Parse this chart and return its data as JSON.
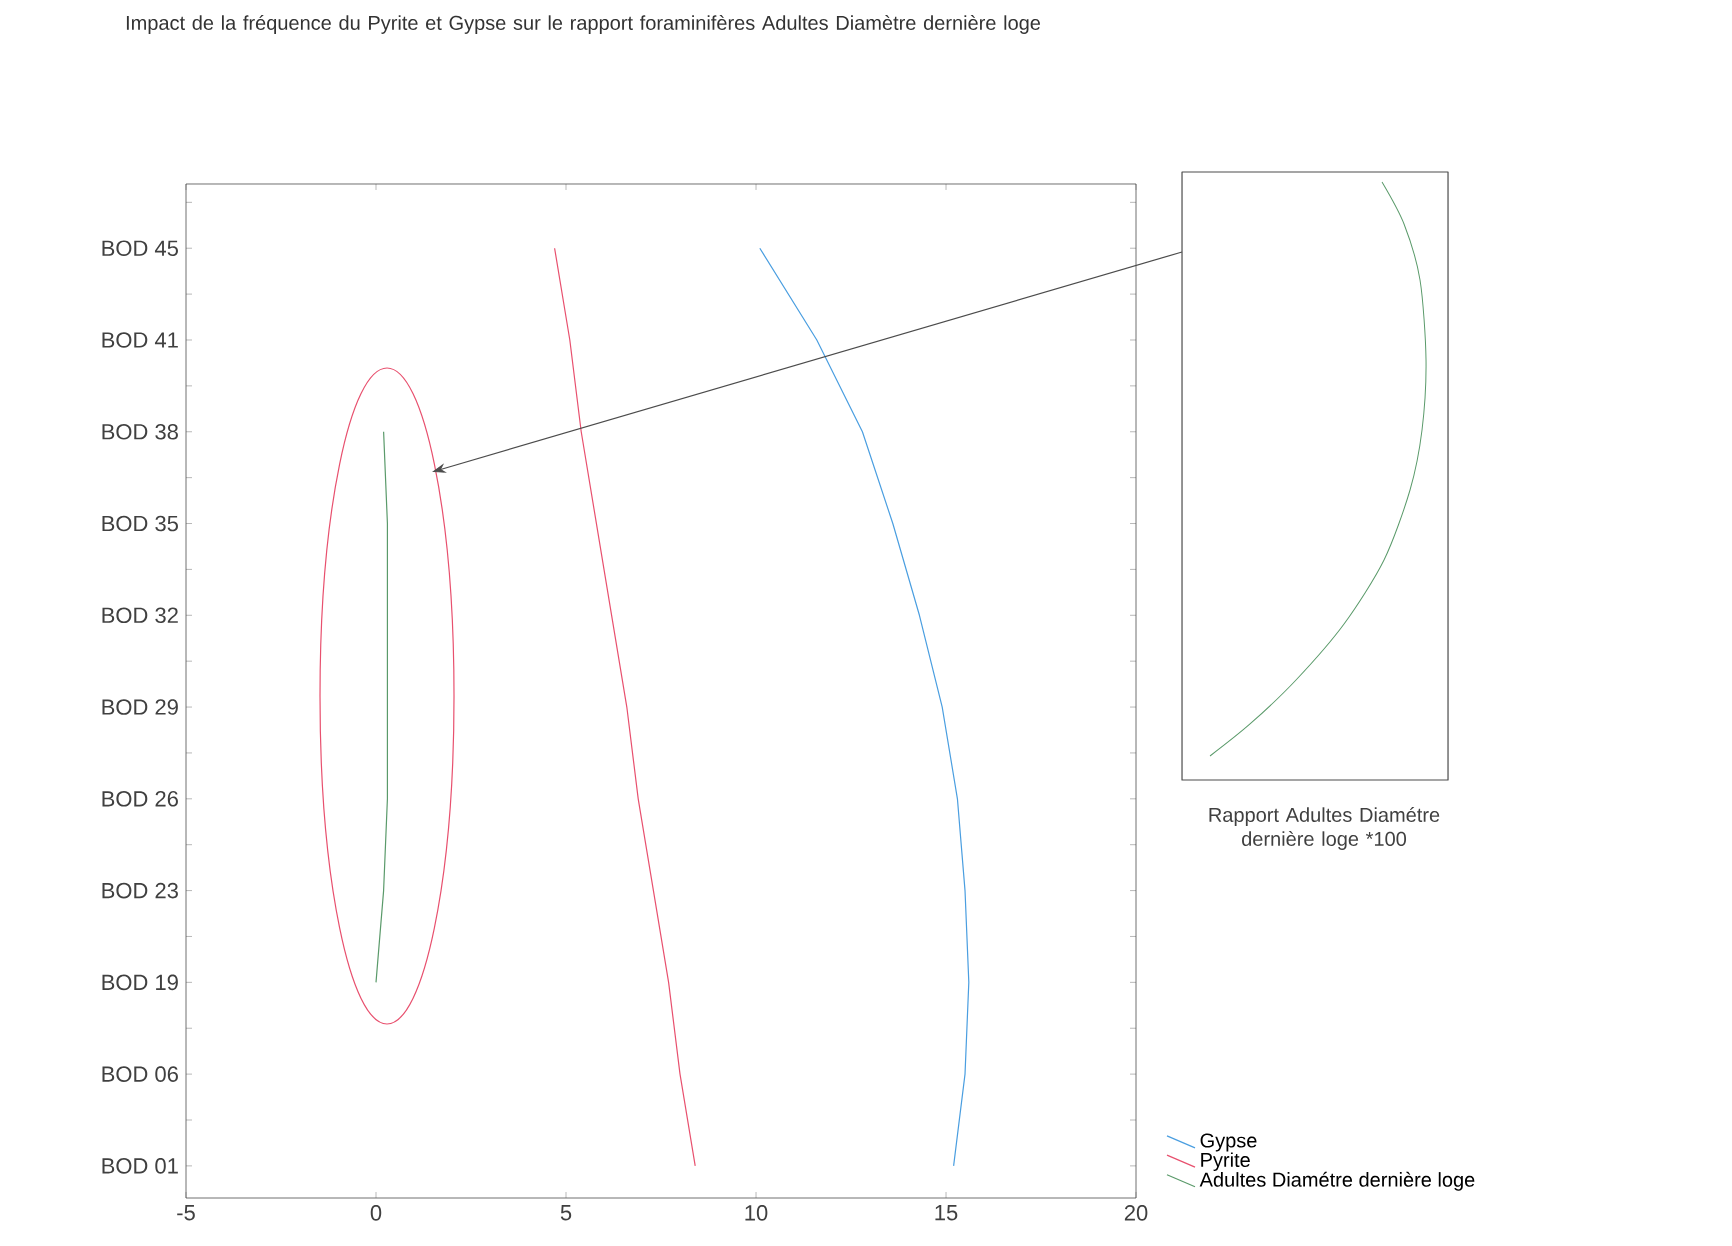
{
  "chart_data": {
    "type": "line",
    "orientation": "horizontal",
    "title": "Impact de la fréquence du Pyrite et Gypse sur le rapport foraminifères Adultes Diamètre dernière loge",
    "categories": [
      "BOD 45",
      "BOD 41",
      "BOD 38",
      "BOD 35",
      "BOD 32",
      "BOD 29",
      "BOD 26",
      "BOD 23",
      "BOD 19",
      "BOD 06",
      "BOD 01"
    ],
    "xlim": [
      -5,
      20
    ],
    "xticks": [
      -5,
      0,
      5,
      10,
      15,
      20
    ],
    "series": [
      {
        "name": "Gypse",
        "color": "#4a9ee0",
        "values": [
          10.1,
          11.6,
          12.8,
          13.6,
          14.3,
          14.9,
          15.3,
          15.5,
          15.6,
          15.5,
          15.2
        ]
      },
      {
        "name": "Pyrite",
        "color": "#e8506e",
        "values": [
          4.7,
          5.1,
          5.4,
          5.8,
          6.2,
          6.6,
          6.9,
          7.3,
          7.7,
          8.0,
          8.4
        ]
      },
      {
        "name": "Adultes Diamétre dernière loge",
        "color": "#5a9a6a",
        "values": [
          null,
          null,
          0.2,
          0.3,
          0.3,
          0.3,
          0.3,
          0.2,
          0.0,
          null,
          null
        ]
      }
    ],
    "annotations": [
      "Rapport Adultes Diamétre dernière loge *100"
    ],
    "legend": "bottom right",
    "grid": false,
    "marker": "none",
    "line_style": "solid"
  }
}
